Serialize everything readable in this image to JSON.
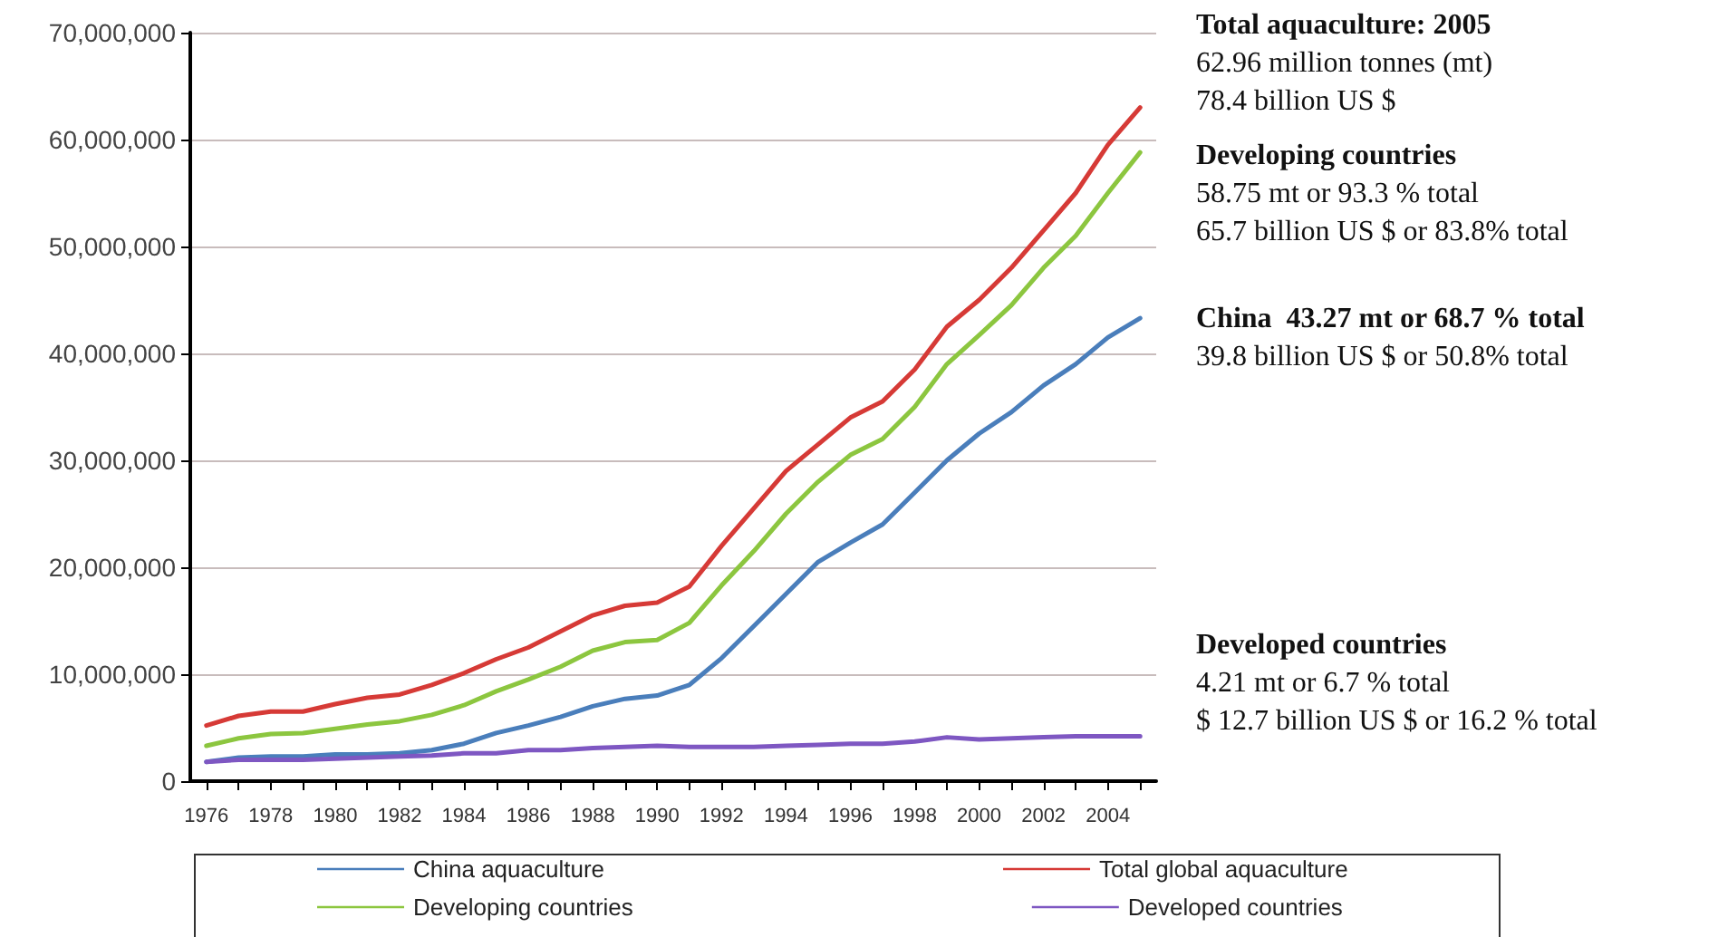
{
  "chart_data": {
    "type": "line",
    "categories": [
      "1976",
      null,
      "1978",
      null,
      "1980",
      null,
      "1982",
      null,
      "1984",
      null,
      "1986",
      null,
      "1988",
      null,
      "1990",
      null,
      "1992",
      null,
      "1994",
      null,
      "1996",
      null,
      "1998",
      null,
      "2000",
      null,
      "2002",
      null,
      "2004",
      null
    ],
    "series": [
      {
        "name": "China aquaculture",
        "color": "#4a7ebb",
        "values": [
          1800000,
          2200000,
          2300000,
          2300000,
          2500000,
          2500000,
          2600000,
          2900000,
          3500000,
          4500000,
          5200000,
          6000000,
          7000000,
          7700000,
          8000000,
          9000000,
          11500000,
          14500000,
          17500000,
          20500000,
          22300000,
          24000000,
          27000000,
          30000000,
          32500000,
          34500000,
          37000000,
          39000000,
          41500000,
          43300000
        ]
      },
      {
        "name": "Total global aquaculture",
        "color": "#d63a36",
        "values": [
          5200000,
          6100000,
          6500000,
          6500000,
          7200000,
          7800000,
          8100000,
          9000000,
          10100000,
          11400000,
          12500000,
          14000000,
          15500000,
          16400000,
          16700000,
          18200000,
          22000000,
          25500000,
          29000000,
          31500000,
          34000000,
          35500000,
          38500000,
          42500000,
          45000000,
          48000000,
          51500000,
          55000000,
          59500000,
          63000000
        ]
      },
      {
        "name": "Developing countries",
        "color": "#8cc63f",
        "values": [
          3300000,
          4000000,
          4400000,
          4500000,
          4900000,
          5300000,
          5600000,
          6200000,
          7100000,
          8400000,
          9500000,
          10700000,
          12200000,
          13000000,
          13200000,
          14800000,
          18300000,
          21500000,
          25000000,
          28000000,
          30500000,
          32000000,
          35000000,
          39000000,
          41700000,
          44500000,
          48000000,
          51000000,
          55000000,
          58800000
        ]
      },
      {
        "name": "Developed countries",
        "color": "#7e57c2",
        "values": [
          1800000,
          2000000,
          2000000,
          2000000,
          2100000,
          2200000,
          2300000,
          2400000,
          2600000,
          2600000,
          2900000,
          2900000,
          3100000,
          3200000,
          3300000,
          3200000,
          3200000,
          3200000,
          3300000,
          3400000,
          3500000,
          3500000,
          3700000,
          4100000,
          3900000,
          4000000,
          4100000,
          4200000,
          4200000,
          4200000
        ]
      }
    ],
    "ylim": [
      0,
      70000000
    ],
    "yticks": [
      0,
      {
        "value": 10000000,
        "label": "10,000,000"
      },
      {
        "value": 20000000,
        "label": "20,000,000"
      },
      {
        "value": 30000000,
        "label": "30,000,000"
      },
      {
        "value": 40000000,
        "label": "40,000,000"
      },
      {
        "value": 50000000,
        "label": "50,000,000"
      },
      {
        "value": 60000000,
        "label": "60,000,000"
      },
      {
        "value": 70000000,
        "label": "70,000,000"
      }
    ],
    "grid": "y",
    "legend": "bottom",
    "marker": "none",
    "line_style": "solid",
    "annotations": [
      "Total aquaculture: 2005\n62.96 million tonnes (mt)\n78.4 billion US $",
      "Developing countries\n58.75 mt or 93.3 % total\n65.7 billion US $ or 83.8% total",
      "China  43.27 mt or 68.7 % total\n39.8 billion US $ or 50.8% total",
      "Developed countries\n4.21 mt or 6.7 % total\n$ 12.7 billion US $ or 16.2 % total"
    ]
  }
}
